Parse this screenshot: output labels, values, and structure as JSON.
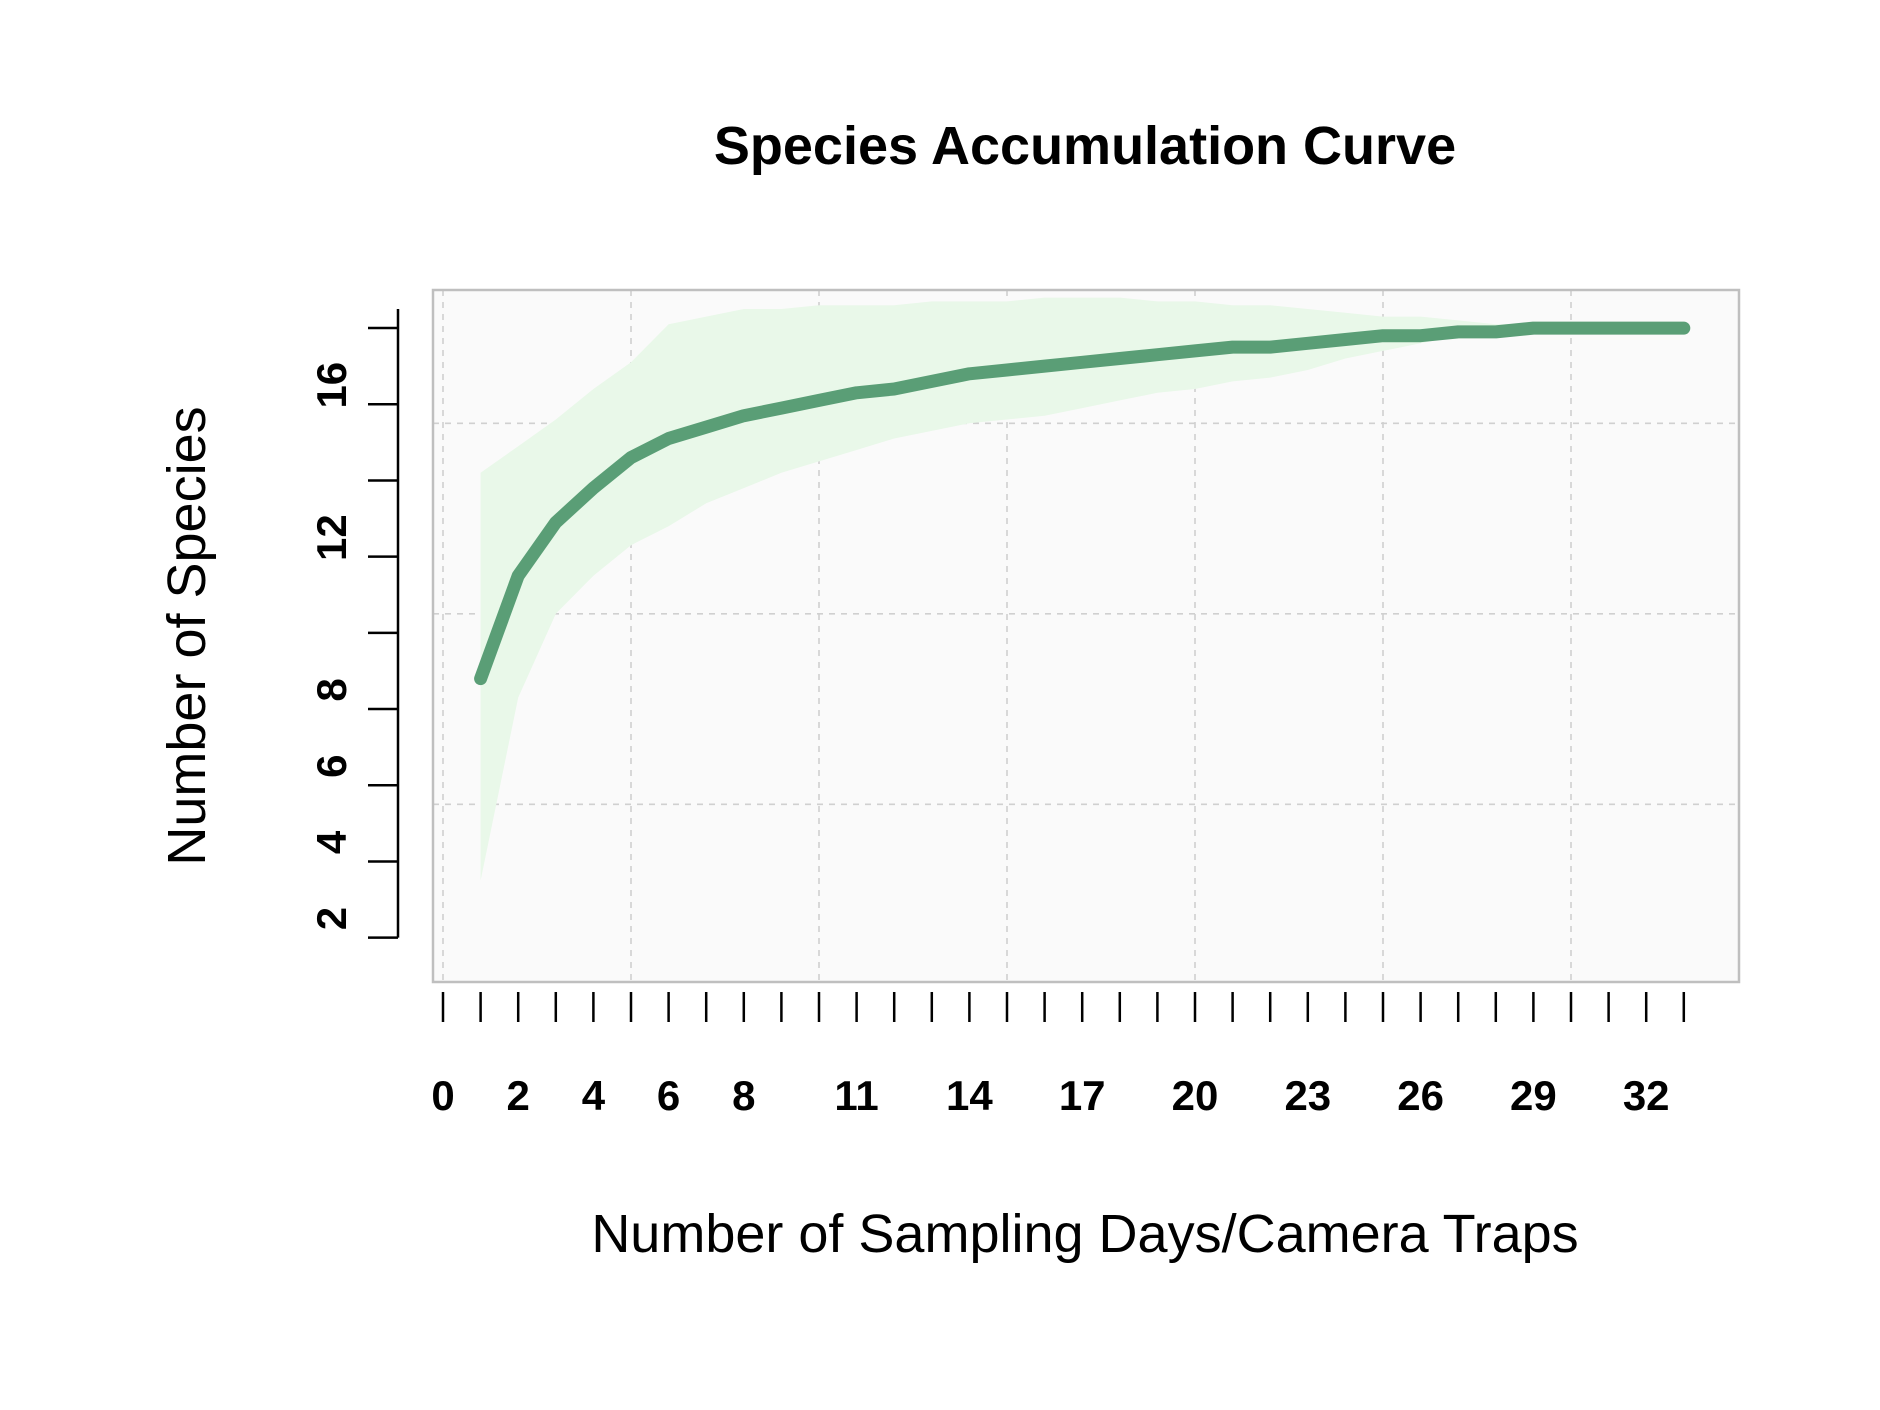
{
  "chart_data": {
    "type": "line",
    "title": "Species Accumulation Curve",
    "xlabel": "Number of Sampling Days/Camera Traps",
    "ylabel": "Number of Species",
    "xlim": [
      0,
      33.5
    ],
    "ylim": [
      0.4,
      18.5
    ],
    "x_tick_labels": [
      "0",
      "2",
      "4",
      "6",
      "8",
      "11",
      "14",
      "17",
      "20",
      "23",
      "26",
      "29",
      "32"
    ],
    "y_tick_labels": [
      "2",
      "4",
      "6",
      "8",
      "12",
      "16"
    ],
    "grid": true,
    "legend": "none",
    "colors": {
      "line": "#5a9e76",
      "band": "#e9f8e9",
      "panel": "#fafafa",
      "grid": "#d0d0d0",
      "frame": "#bfbfbf"
    },
    "series": [
      {
        "x": [
          1,
          2,
          3,
          4,
          5,
          6,
          7,
          8,
          9,
          10,
          11,
          12,
          13,
          14,
          15,
          16,
          17,
          18,
          19,
          20,
          21,
          22,
          23,
          24,
          25,
          26,
          27,
          28,
          29,
          30,
          31,
          32,
          33
        ],
        "y": [
          8.3,
          11.0,
          12.4,
          13.3,
          14.1,
          14.6,
          14.9,
          15.2,
          15.4,
          15.6,
          15.8,
          15.9,
          16.1,
          16.3,
          16.4,
          16.5,
          16.6,
          16.7,
          16.8,
          16.9,
          17.0,
          17.0,
          17.1,
          17.2,
          17.3,
          17.3,
          17.4,
          17.4,
          17.5,
          17.5,
          17.5,
          17.5,
          17.5
        ],
        "lower": [
          3.0,
          7.8,
          10.0,
          11.0,
          11.8,
          12.3,
          12.9,
          13.3,
          13.7,
          14.0,
          14.3,
          14.6,
          14.8,
          15.0,
          15.1,
          15.2,
          15.4,
          15.6,
          15.8,
          15.9,
          16.1,
          16.2,
          16.4,
          16.7,
          16.9,
          17.1,
          17.3,
          17.4,
          17.5,
          17.5,
          17.5,
          17.5,
          17.5
        ],
        "upper": [
          13.7,
          14.4,
          15.1,
          15.9,
          16.6,
          17.6,
          17.8,
          18.0,
          18.0,
          18.1,
          18.1,
          18.1,
          18.2,
          18.2,
          18.2,
          18.3,
          18.3,
          18.3,
          18.2,
          18.2,
          18.1,
          18.1,
          18.0,
          17.9,
          17.8,
          17.8,
          17.7,
          17.6,
          17.6,
          17.5,
          17.5,
          17.5,
          17.5
        ]
      }
    ]
  }
}
